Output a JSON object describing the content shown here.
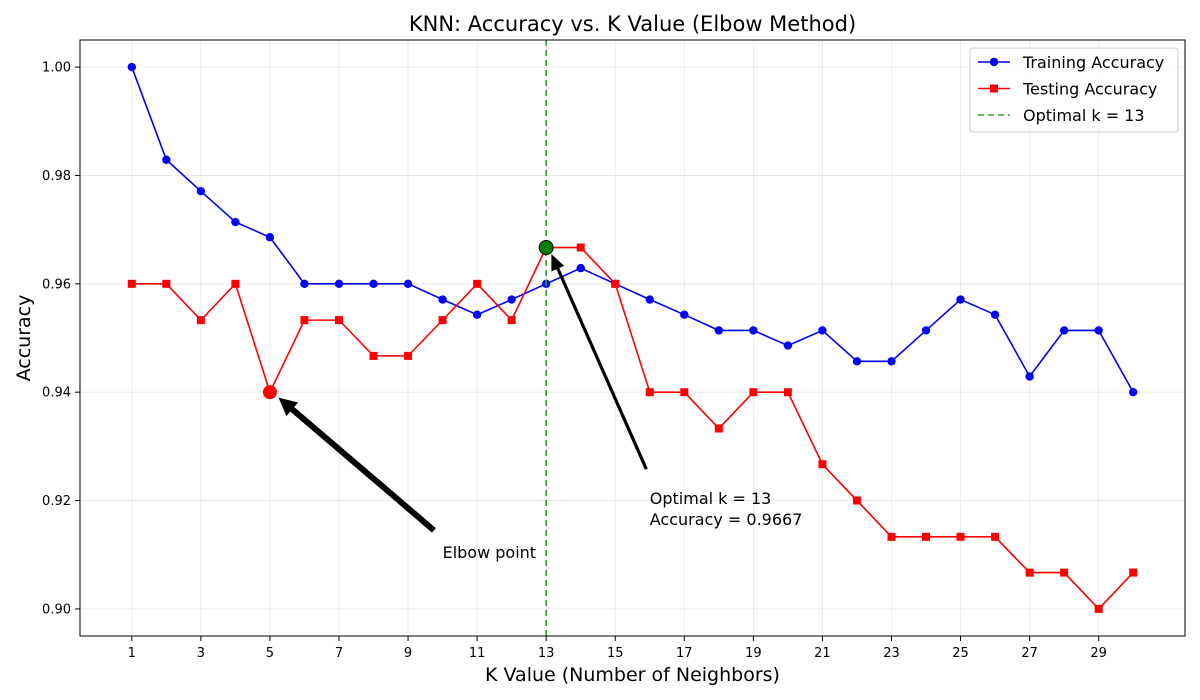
{
  "chart_data": {
    "type": "line",
    "title": "KNN: Accuracy vs. K Value (Elbow Method)",
    "xlabel": "K Value (Number of Neighbors)",
    "ylabel": "Accuracy",
    "xlim": [
      -0.5,
      31.5
    ],
    "ylim": [
      0.895,
      1.005
    ],
    "xticks": [
      1,
      3,
      5,
      7,
      9,
      11,
      13,
      15,
      17,
      19,
      21,
      23,
      25,
      27,
      29
    ],
    "xtick_labels": [
      "1",
      "3",
      "5",
      "7",
      "9",
      "11",
      "13",
      "15",
      "17",
      "19",
      "21",
      "23",
      "25",
      "27",
      "29"
    ],
    "yticks": [
      0.9,
      0.92,
      0.94,
      0.96,
      0.98,
      1.0
    ],
    "ytick_labels": [
      "0.90",
      "0.92",
      "0.94",
      "0.96",
      "0.98",
      "1.00"
    ],
    "grid": true,
    "legend_position": "top-right",
    "x": [
      1,
      2,
      3,
      4,
      5,
      6,
      7,
      8,
      9,
      10,
      11,
      12,
      13,
      14,
      15,
      16,
      17,
      18,
      19,
      20,
      21,
      22,
      23,
      24,
      25,
      26,
      27,
      28,
      29,
      30
    ],
    "series": [
      {
        "name": "Training Accuracy",
        "color": "#0000ff",
        "marker": "circle",
        "values": [
          1.0,
          0.9829,
          0.9771,
          0.9714,
          0.9686,
          0.96,
          0.96,
          0.96,
          0.96,
          0.9571,
          0.9543,
          0.9571,
          0.96,
          0.9629,
          0.96,
          0.9571,
          0.9543,
          0.9514,
          0.9514,
          0.9486,
          0.9514,
          0.9457,
          0.9457,
          0.9514,
          0.9571,
          0.9543,
          0.9429,
          0.9514,
          0.9514,
          0.94
        ]
      },
      {
        "name": "Testing Accuracy",
        "color": "#ff0000",
        "marker": "square",
        "values": [
          0.96,
          0.96,
          0.9533,
          0.96,
          0.94,
          0.9533,
          0.9533,
          0.9467,
          0.9467,
          0.9533,
          0.96,
          0.9533,
          0.9667,
          0.9667,
          0.96,
          0.94,
          0.94,
          0.9333,
          0.94,
          0.94,
          0.9267,
          0.92,
          0.9133,
          0.9133,
          0.9133,
          0.9133,
          0.9067,
          0.9067,
          0.9,
          0.9067
        ]
      }
    ],
    "vline": {
      "x": 13,
      "name": "Optimal k = 13",
      "color": "#2ca02c"
    },
    "highlight_points": [
      {
        "x": 5,
        "y": 0.94,
        "color": "#ff0000"
      },
      {
        "x": 13,
        "y": 0.9667,
        "color": "#008000"
      }
    ],
    "annotations": [
      {
        "lines": [
          "Elbow point"
        ],
        "point": [
          5,
          0.94
        ],
        "text_at": [
          10,
          0.9105
        ]
      },
      {
        "lines": [
          "Optimal k = 13",
          "Accuracy = 0.9667"
        ],
        "point": [
          13,
          0.9667
        ],
        "text_at": [
          16,
          0.9205
        ]
      }
    ]
  }
}
